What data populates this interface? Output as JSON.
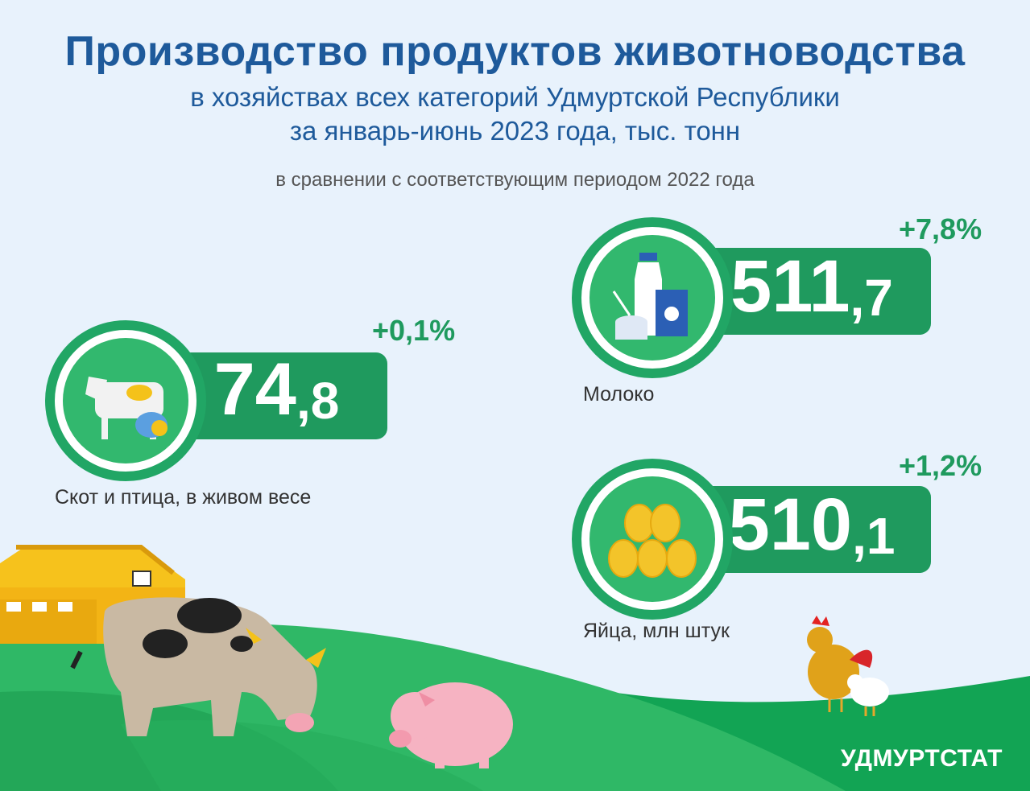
{
  "title": "Производство продуктов животноводства",
  "subtitle_line1": "в хозяйствах всех категорий Удмуртской Республики",
  "subtitle_line2": "за январь-июнь 2023 года, тыс. тонн",
  "comparison": "в сравнении с соответствующим периодом 2022 года",
  "items": [
    {
      "icon": "livestock-icon",
      "value_int": "74",
      "value_dec": ",8",
      "change": "+0,1%",
      "label": "Скот и птица, в живом весе"
    },
    {
      "icon": "milk-icon",
      "value_int": "511",
      "value_dec": ",7",
      "change": "+7,8%",
      "label": "Молоко"
    },
    {
      "icon": "eggs-icon",
      "value_int": "510",
      "value_dec": ",1",
      "change": "+1,2%",
      "label": "Яйца, млн штук"
    }
  ],
  "brand": "УДМУРТСТАТ",
  "colors": {
    "title": "#1e5a9b",
    "accent_green": "#1f9a5e",
    "background": "#e8f2fc"
  }
}
